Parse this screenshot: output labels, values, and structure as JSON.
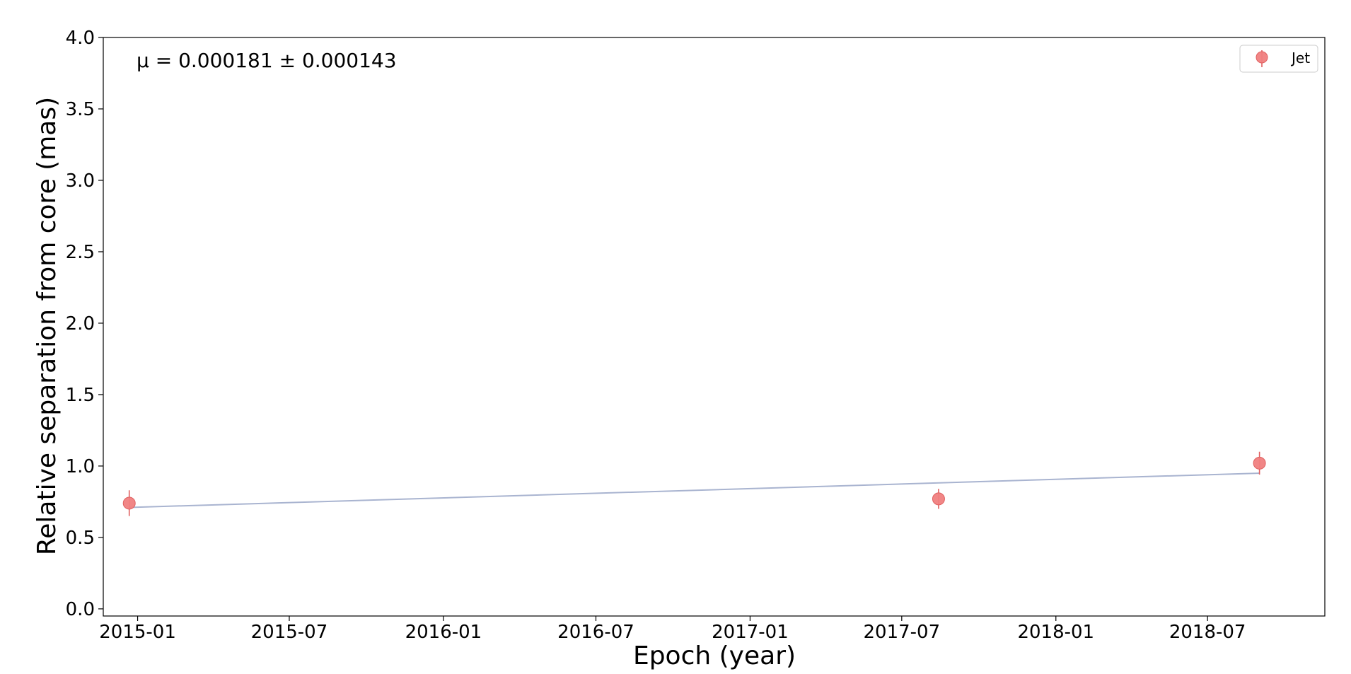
{
  "chart_data": {
    "type": "scatter",
    "title": "",
    "xlabel": "Epoch (year)",
    "ylabel": "Relative separation from core (mas)",
    "annotation": "μ = 0.000181 ± 0.000143",
    "x_axis": {
      "type": "date",
      "range": [
        "2014-11-21",
        "2018-11-18"
      ],
      "ticks": [
        {
          "date": "2015-01-01",
          "label": "2015-01"
        },
        {
          "date": "2015-07-01",
          "label": "2015-07"
        },
        {
          "date": "2016-01-01",
          "label": "2016-01"
        },
        {
          "date": "2016-07-01",
          "label": "2016-07"
        },
        {
          "date": "2017-01-01",
          "label": "2017-01"
        },
        {
          "date": "2017-07-01",
          "label": "2017-07"
        },
        {
          "date": "2018-01-01",
          "label": "2018-01"
        },
        {
          "date": "2018-07-01",
          "label": "2018-07"
        }
      ]
    },
    "y_axis": {
      "range": [
        -0.05,
        4.0
      ],
      "ticks": [
        {
          "value": 0.0,
          "label": "0.0"
        },
        {
          "value": 0.5,
          "label": "0.5"
        },
        {
          "value": 1.0,
          "label": "1.0"
        },
        {
          "value": 1.5,
          "label": "1.5"
        },
        {
          "value": 2.0,
          "label": "2.0"
        },
        {
          "value": 2.5,
          "label": "2.5"
        },
        {
          "value": 3.0,
          "label": "3.0"
        },
        {
          "value": 3.5,
          "label": "3.5"
        },
        {
          "value": 4.0,
          "label": "4.0"
        }
      ]
    },
    "series": [
      {
        "name": "Jet",
        "color": "#f08080",
        "edge_color": "#e06060",
        "points": [
          {
            "x": "2014-12-22",
            "y": 0.74,
            "err": 0.09
          },
          {
            "x": "2017-08-14",
            "y": 0.77,
            "err": 0.07
          },
          {
            "x": "2018-09-01",
            "y": 1.02,
            "err": 0.08
          }
        ]
      }
    ],
    "fit": {
      "color": "#a9b4d0",
      "x": [
        "2014-12-22",
        "2018-09-01"
      ],
      "y": [
        0.71,
        0.95
      ]
    },
    "legend": {
      "position": "top-right",
      "entries": [
        "Jet"
      ]
    },
    "grid": false
  }
}
